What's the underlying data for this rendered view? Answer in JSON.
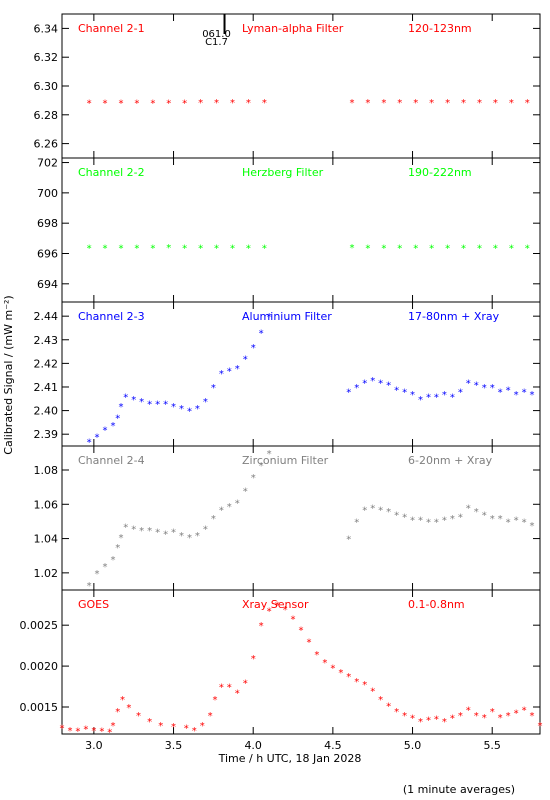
{
  "chart_data": {
    "type": "scatter",
    "x_axis": {
      "label": "Time / h UTC, 18 Jan 2028",
      "range": [
        2.8,
        5.8
      ],
      "ticks": [
        3.0,
        3.5,
        4.0,
        4.5,
        5.0,
        5.5
      ],
      "tick_labels": [
        "3.0",
        "3.5",
        "4.0",
        "4.5",
        "5.0",
        "5.5"
      ]
    },
    "y_axis_label": "Calibrated Signal / (mW m⁻²)",
    "footnote": "(1 minute averages)",
    "marker": {
      "time": 3.82,
      "labels": [
        "061.0",
        "C1.7"
      ]
    },
    "marker_symbol": "*",
    "panels": [
      {
        "name": "Channel 2-1",
        "filter": "Lyman-alpha Filter",
        "band": "120-123nm",
        "color": "#ff0000",
        "ylim": [
          6.25,
          6.35
        ],
        "yticks": [
          6.26,
          6.28,
          6.3,
          6.32,
          6.34
        ],
        "ytick_labels": [
          "6.26",
          "6.28",
          "6.30",
          "6.32",
          "6.34"
        ],
        "points": [
          [
            2.97,
            6.2885
          ],
          [
            3.07,
            6.2886
          ],
          [
            3.17,
            6.2887
          ],
          [
            3.27,
            6.2886
          ],
          [
            3.37,
            6.2887
          ],
          [
            3.47,
            6.2886
          ],
          [
            3.57,
            6.2887
          ],
          [
            3.67,
            6.2888
          ],
          [
            3.77,
            6.2888
          ],
          [
            3.87,
            6.2889
          ],
          [
            3.97,
            6.289
          ],
          [
            4.07,
            6.289
          ],
          [
            4.62,
            6.2888
          ],
          [
            4.72,
            6.2888
          ],
          [
            4.82,
            6.2889
          ],
          [
            4.92,
            6.2888
          ],
          [
            5.02,
            6.2889
          ],
          [
            5.12,
            6.2889
          ],
          [
            5.22,
            6.289
          ],
          [
            5.32,
            6.2889
          ],
          [
            5.42,
            6.289
          ],
          [
            5.52,
            6.289
          ],
          [
            5.62,
            6.2889
          ],
          [
            5.72,
            6.289
          ]
        ]
      },
      {
        "name": "Channel 2-2",
        "filter": "Herzberg Filter",
        "band": "190-222nm",
        "color": "#00ff00",
        "ylim": [
          692.8,
          702.3
        ],
        "yticks": [
          694,
          696,
          698,
          700,
          702
        ],
        "ytick_labels": [
          "694",
          "696",
          "698",
          "700",
          "702"
        ],
        "points": [
          [
            2.97,
            696.38
          ],
          [
            3.07,
            696.4
          ],
          [
            3.17,
            696.39
          ],
          [
            3.27,
            696.4
          ],
          [
            3.37,
            696.41
          ],
          [
            3.47,
            696.42
          ],
          [
            3.57,
            696.41
          ],
          [
            3.67,
            696.4
          ],
          [
            3.77,
            696.39
          ],
          [
            3.87,
            696.4
          ],
          [
            3.97,
            696.4
          ],
          [
            4.07,
            696.4
          ],
          [
            4.62,
            696.42
          ],
          [
            4.72,
            696.41
          ],
          [
            4.82,
            696.4
          ],
          [
            4.92,
            696.4
          ],
          [
            5.02,
            696.4
          ],
          [
            5.12,
            696.4
          ],
          [
            5.22,
            696.4
          ],
          [
            5.32,
            696.41
          ],
          [
            5.42,
            696.4
          ],
          [
            5.52,
            696.4
          ],
          [
            5.62,
            696.4
          ],
          [
            5.72,
            696.4
          ]
        ]
      },
      {
        "name": "Channel 2-3",
        "filter": "Aluminium Filter",
        "band": "17-80nm + Xray",
        "color": "#0000ff",
        "ylim": [
          2.385,
          2.446
        ],
        "yticks": [
          2.39,
          2.4,
          2.41,
          2.42,
          2.43,
          2.44
        ],
        "ytick_labels": [
          "2.39",
          "2.40",
          "2.41",
          "2.42",
          "2.43",
          "2.44"
        ],
        "points": [
          [
            2.97,
            2.387
          ],
          [
            3.02,
            2.389
          ],
          [
            3.07,
            2.392
          ],
          [
            3.12,
            2.394
          ],
          [
            3.15,
            2.397
          ],
          [
            3.17,
            2.402
          ],
          [
            3.2,
            2.406
          ],
          [
            3.25,
            2.405
          ],
          [
            3.3,
            2.404
          ],
          [
            3.35,
            2.403
          ],
          [
            3.4,
            2.403
          ],
          [
            3.45,
            2.403
          ],
          [
            3.5,
            2.402
          ],
          [
            3.55,
            2.401
          ],
          [
            3.6,
            2.4
          ],
          [
            3.65,
            2.401
          ],
          [
            3.7,
            2.404
          ],
          [
            3.75,
            2.41
          ],
          [
            3.8,
            2.416
          ],
          [
            3.85,
            2.417
          ],
          [
            3.9,
            2.418
          ],
          [
            3.95,
            2.422
          ],
          [
            4.0,
            2.427
          ],
          [
            4.05,
            2.433
          ],
          [
            4.1,
            2.44
          ],
          [
            4.6,
            2.408
          ],
          [
            4.65,
            2.41
          ],
          [
            4.7,
            2.412
          ],
          [
            4.75,
            2.413
          ],
          [
            4.8,
            2.412
          ],
          [
            4.85,
            2.411
          ],
          [
            4.9,
            2.409
          ],
          [
            4.95,
            2.408
          ],
          [
            5.0,
            2.407
          ],
          [
            5.05,
            2.405
          ],
          [
            5.1,
            2.406
          ],
          [
            5.15,
            2.406
          ],
          [
            5.2,
            2.407
          ],
          [
            5.25,
            2.406
          ],
          [
            5.3,
            2.408
          ],
          [
            5.35,
            2.412
          ],
          [
            5.4,
            2.411
          ],
          [
            5.45,
            2.41
          ],
          [
            5.5,
            2.41
          ],
          [
            5.55,
            2.408
          ],
          [
            5.6,
            2.409
          ],
          [
            5.65,
            2.407
          ],
          [
            5.7,
            2.408
          ],
          [
            5.75,
            2.407
          ]
        ]
      },
      {
        "name": "Channel 2-4",
        "filter": "Zirconium Filter",
        "band": "6-20nm + Xray",
        "color": "#808080",
        "ylim": [
          1.01,
          1.094
        ],
        "yticks": [
          1.02,
          1.04,
          1.06,
          1.08
        ],
        "ytick_labels": [
          "1.02",
          "1.04",
          "1.06",
          "1.08"
        ],
        "points": [
          [
            2.97,
            1.013
          ],
          [
            3.02,
            1.02
          ],
          [
            3.07,
            1.024
          ],
          [
            3.12,
            1.028
          ],
          [
            3.15,
            1.035
          ],
          [
            3.17,
            1.041
          ],
          [
            3.2,
            1.047
          ],
          [
            3.25,
            1.046
          ],
          [
            3.3,
            1.045
          ],
          [
            3.35,
            1.045
          ],
          [
            3.4,
            1.044
          ],
          [
            3.45,
            1.043
          ],
          [
            3.5,
            1.044
          ],
          [
            3.55,
            1.042
          ],
          [
            3.6,
            1.041
          ],
          [
            3.65,
            1.042
          ],
          [
            3.7,
            1.046
          ],
          [
            3.75,
            1.052
          ],
          [
            3.8,
            1.057
          ],
          [
            3.85,
            1.059
          ],
          [
            3.9,
            1.061
          ],
          [
            3.95,
            1.068
          ],
          [
            4.0,
            1.076
          ],
          [
            4.05,
            1.083
          ],
          [
            4.1,
            1.09
          ],
          [
            4.6,
            1.04
          ],
          [
            4.65,
            1.05
          ],
          [
            4.7,
            1.057
          ],
          [
            4.75,
            1.058
          ],
          [
            4.8,
            1.057
          ],
          [
            4.85,
            1.056
          ],
          [
            4.9,
            1.054
          ],
          [
            4.95,
            1.053
          ],
          [
            5.0,
            1.051
          ],
          [
            5.05,
            1.051
          ],
          [
            5.1,
            1.05
          ],
          [
            5.15,
            1.05
          ],
          [
            5.2,
            1.051
          ],
          [
            5.25,
            1.052
          ],
          [
            5.3,
            1.053
          ],
          [
            5.35,
            1.058
          ],
          [
            5.4,
            1.056
          ],
          [
            5.45,
            1.054
          ],
          [
            5.5,
            1.052
          ],
          [
            5.55,
            1.052
          ],
          [
            5.6,
            1.05
          ],
          [
            5.65,
            1.051
          ],
          [
            5.7,
            1.05
          ],
          [
            5.75,
            1.048
          ]
        ]
      },
      {
        "name": "GOES",
        "filter": "Xray Sensor",
        "band": "0.1-0.8nm",
        "color": "#ff0000",
        "ylim": [
          0.00117,
          0.00293
        ],
        "yticks": [
          0.0015,
          0.002,
          0.0025
        ],
        "ytick_labels": [
          "0.0015",
          "0.0020",
          "0.0025"
        ],
        "points": [
          [
            2.8,
            0.00125
          ],
          [
            2.85,
            0.00122
          ],
          [
            2.9,
            0.00121
          ],
          [
            2.95,
            0.00124
          ],
          [
            3.0,
            0.00122
          ],
          [
            3.05,
            0.00121
          ],
          [
            3.1,
            0.0012
          ],
          [
            3.12,
            0.00128
          ],
          [
            3.15,
            0.00145
          ],
          [
            3.18,
            0.0016
          ],
          [
            3.22,
            0.0015
          ],
          [
            3.28,
            0.0014
          ],
          [
            3.35,
            0.00133
          ],
          [
            3.42,
            0.00128
          ],
          [
            3.5,
            0.00127
          ],
          [
            3.58,
            0.00125
          ],
          [
            3.63,
            0.00122
          ],
          [
            3.68,
            0.00128
          ],
          [
            3.73,
            0.0014
          ],
          [
            3.76,
            0.0016
          ],
          [
            3.8,
            0.00175
          ],
          [
            3.85,
            0.00175
          ],
          [
            3.9,
            0.00168
          ],
          [
            3.95,
            0.0018
          ],
          [
            4.0,
            0.0021
          ],
          [
            4.05,
            0.0025
          ],
          [
            4.1,
            0.00268
          ],
          [
            4.15,
            0.00275
          ],
          [
            4.2,
            0.0027
          ],
          [
            4.25,
            0.00258
          ],
          [
            4.3,
            0.00245
          ],
          [
            4.35,
            0.0023
          ],
          [
            4.4,
            0.00215
          ],
          [
            4.45,
            0.00205
          ],
          [
            4.5,
            0.00198
          ],
          [
            4.55,
            0.00193
          ],
          [
            4.6,
            0.00188
          ],
          [
            4.65,
            0.00182
          ],
          [
            4.7,
            0.00178
          ],
          [
            4.75,
            0.0017
          ],
          [
            4.8,
            0.0016
          ],
          [
            4.85,
            0.00152
          ],
          [
            4.9,
            0.00145
          ],
          [
            4.95,
            0.0014
          ],
          [
            5.0,
            0.00137
          ],
          [
            5.05,
            0.00133
          ],
          [
            5.1,
            0.00135
          ],
          [
            5.15,
            0.00136
          ],
          [
            5.2,
            0.00133
          ],
          [
            5.25,
            0.00137
          ],
          [
            5.3,
            0.0014
          ],
          [
            5.35,
            0.00147
          ],
          [
            5.4,
            0.0014
          ],
          [
            5.45,
            0.00138
          ],
          [
            5.5,
            0.00145
          ],
          [
            5.55,
            0.00138
          ],
          [
            5.6,
            0.0014
          ],
          [
            5.65,
            0.00143
          ],
          [
            5.7,
            0.00147
          ],
          [
            5.75,
            0.0014
          ],
          [
            5.8,
            0.00128
          ]
        ]
      }
    ]
  }
}
